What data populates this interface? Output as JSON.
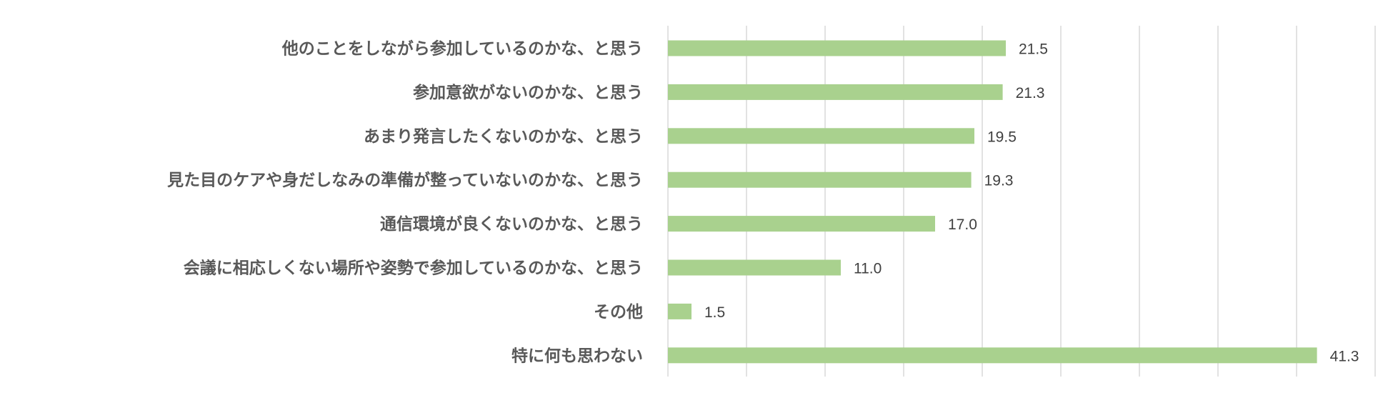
{
  "chart_data": {
    "type": "bar",
    "orientation": "horizontal",
    "categories": [
      "他のことをしながら参加しているのかな、と思う",
      "参加意欲がないのかな、と思う",
      "あまり発言したくないのかな、と思う",
      "見た目のケアや身だしなみの準備が整っていないのかな、と思う",
      "通信環境が良くないのかな、と思う",
      "会議に相応しくない場所や姿勢で参加しているのかな、と思う",
      "その他",
      "特に何も思わない"
    ],
    "values": [
      21.5,
      21.3,
      19.5,
      19.3,
      17.0,
      11.0,
      1.5,
      41.3
    ],
    "data_labels": [
      "21.5",
      "21.3",
      "19.5",
      "19.3",
      "17.0",
      "11.0",
      "1.5",
      "41.3"
    ],
    "xlim": [
      0,
      45
    ],
    "grid_step": 5,
    "grid": true,
    "tick_labels_shown": false,
    "legend": "none",
    "bar_color": "#a9d18e",
    "grid_color": "#d9d9d9"
  }
}
